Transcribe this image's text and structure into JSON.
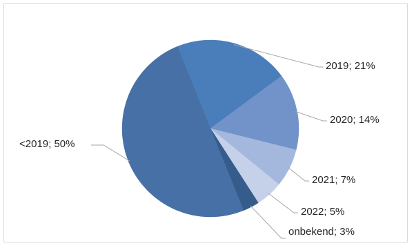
{
  "chart_data": {
    "type": "pie",
    "title": "",
    "slices": [
      {
        "category": "2019",
        "value": 21,
        "label": "2019; 21%",
        "color": "#4a7ebb"
      },
      {
        "category": "2020",
        "value": 14,
        "label": "2020; 14%",
        "color": "#7193c9"
      },
      {
        "category": "2021",
        "value": 7,
        "label": "2021; 7%",
        "color": "#a3b8dc"
      },
      {
        "category": "2022",
        "value": 5,
        "label": "2022; 5%",
        "color": "#c5d1e8"
      },
      {
        "category": "onbekend",
        "value": 3,
        "label": "onbekend; 3%",
        "color": "#365c8b"
      },
      {
        "category": "<2019",
        "value": 50,
        "label": "<2019; 50%",
        "color": "#4670a6"
      }
    ],
    "legend": "none",
    "data_labels": "outside with leader lines"
  }
}
